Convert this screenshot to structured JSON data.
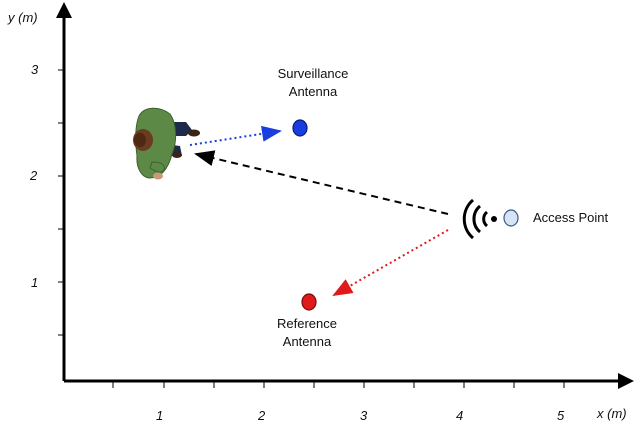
{
  "axes": {
    "x_label": "x (m)",
    "y_label": "y (m)",
    "x_ticks": [
      "1",
      "2",
      "3",
      "4",
      "5"
    ],
    "y_ticks": [
      "1",
      "2",
      "3"
    ]
  },
  "nodes": {
    "surveillance": {
      "label_line1": "Surveillance",
      "label_line2": "Antenna",
      "color": "#1a3de0"
    },
    "reference": {
      "label_line1": "Reference",
      "label_line2": "Antenna",
      "color": "#e01a1a"
    },
    "access_point": {
      "label": "Access Point",
      "color": "#d6e4f5"
    }
  },
  "arrows": {
    "person_to_surveillance": {
      "style": "dotted",
      "color": "#1a3de0"
    },
    "ap_to_person": {
      "style": "dashed",
      "color": "#000000"
    },
    "ap_to_reference": {
      "style": "dotted",
      "color": "#e01a1a"
    }
  }
}
